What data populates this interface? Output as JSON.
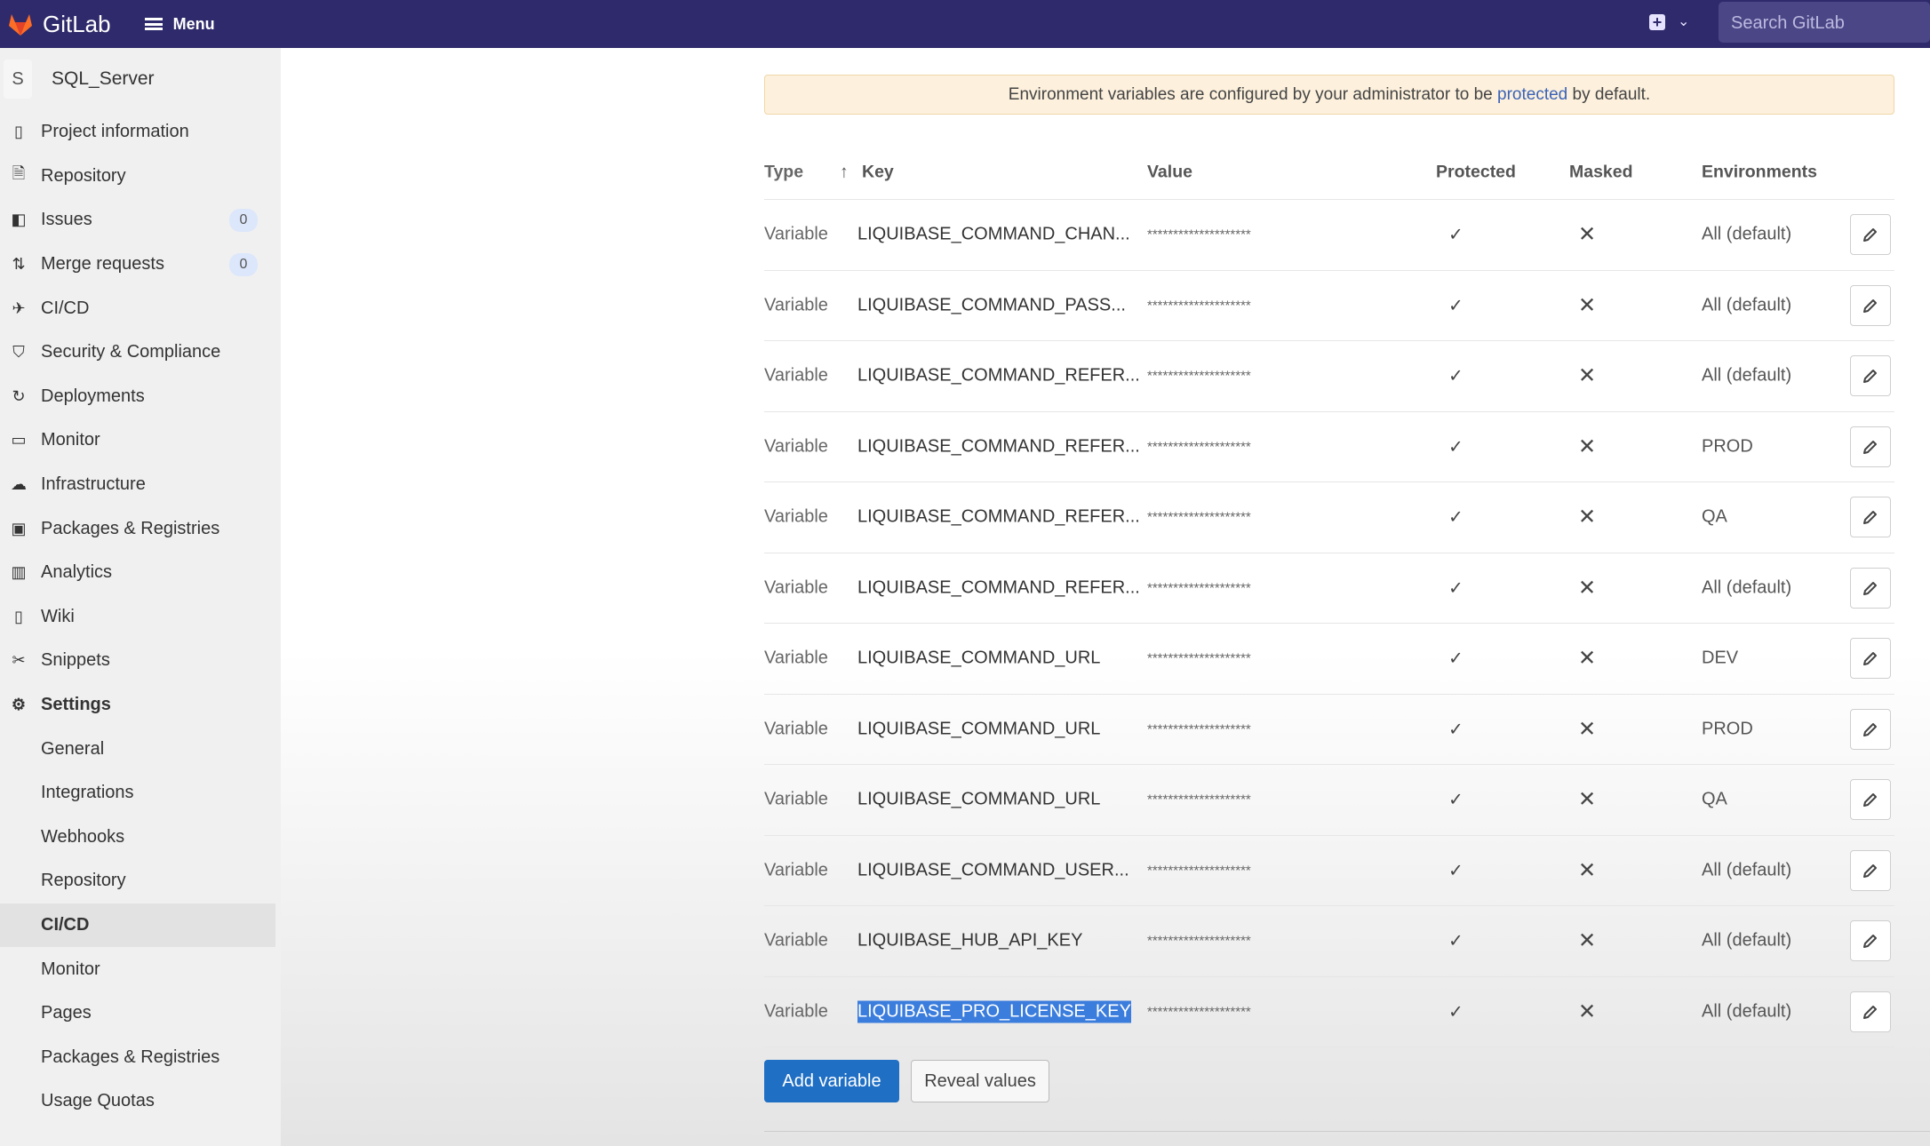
{
  "header": {
    "app_name": "GitLab",
    "menu_label": "Menu",
    "search_placeholder": "Search GitLab",
    "new_icon": "plus-square-icon",
    "brand_color": "#2f2a6b"
  },
  "sidebar": {
    "project_avatar": "S",
    "project_name": "SQL_Server",
    "items": [
      {
        "label": "Project information",
        "icon": "project-icon"
      },
      {
        "label": "Repository",
        "icon": "doc-icon"
      },
      {
        "label": "Issues",
        "icon": "issues-icon",
        "badge": "0"
      },
      {
        "label": "Merge requests",
        "icon": "merge-icon",
        "badge": "0"
      },
      {
        "label": "CI/CD",
        "icon": "rocket-icon"
      },
      {
        "label": "Security & Compliance",
        "icon": "shield-icon"
      },
      {
        "label": "Deployments",
        "icon": "deploy-icon"
      },
      {
        "label": "Monitor",
        "icon": "monitor-icon"
      },
      {
        "label": "Infrastructure",
        "icon": "cloud-icon"
      },
      {
        "label": "Packages & Registries",
        "icon": "package-icon"
      },
      {
        "label": "Analytics",
        "icon": "chart-icon"
      },
      {
        "label": "Wiki",
        "icon": "book-icon"
      },
      {
        "label": "Snippets",
        "icon": "scissors-icon"
      },
      {
        "label": "Settings",
        "icon": "gear-icon"
      }
    ],
    "settings_sub": [
      "General",
      "Integrations",
      "Webhooks",
      "Repository",
      "CI/CD",
      "Monitor",
      "Pages",
      "Packages & Registries",
      "Usage Quotas"
    ],
    "active_sub": "CI/CD"
  },
  "banner": {
    "before": "Environment variables are configured by your administrator to be ",
    "link": "protected",
    "after": " by default."
  },
  "table": {
    "headers": {
      "type": "Type",
      "key": "Key",
      "value": "Value",
      "protected": "Protected",
      "masked": "Masked",
      "environments": "Environments"
    },
    "sort_icon": "arrow-up-icon",
    "rows": [
      {
        "type": "Variable",
        "key": "LIQUIBASE_COMMAND_CHAN...",
        "value": "********************",
        "protected": "✓",
        "masked": "✕",
        "env": "All (default)"
      },
      {
        "type": "Variable",
        "key": "LIQUIBASE_COMMAND_PASS...",
        "value": "********************",
        "protected": "✓",
        "masked": "✕",
        "env": "All (default)"
      },
      {
        "type": "Variable",
        "key": "LIQUIBASE_COMMAND_REFER...",
        "value": "********************",
        "protected": "✓",
        "masked": "✕",
        "env": "All (default)"
      },
      {
        "type": "Variable",
        "key": "LIQUIBASE_COMMAND_REFER...",
        "value": "********************",
        "protected": "✓",
        "masked": "✕",
        "env": "PROD"
      },
      {
        "type": "Variable",
        "key": "LIQUIBASE_COMMAND_REFER...",
        "value": "********************",
        "protected": "✓",
        "masked": "✕",
        "env": "QA"
      },
      {
        "type": "Variable",
        "key": "LIQUIBASE_COMMAND_REFER...",
        "value": "********************",
        "protected": "✓",
        "masked": "✕",
        "env": "All (default)"
      },
      {
        "type": "Variable",
        "key": "LIQUIBASE_COMMAND_URL",
        "value": "********************",
        "protected": "✓",
        "masked": "✕",
        "env": "DEV"
      },
      {
        "type": "Variable",
        "key": "LIQUIBASE_COMMAND_URL",
        "value": "********************",
        "protected": "✓",
        "masked": "✕",
        "env": "PROD"
      },
      {
        "type": "Variable",
        "key": "LIQUIBASE_COMMAND_URL",
        "value": "********************",
        "protected": "✓",
        "masked": "✕",
        "env": "QA"
      },
      {
        "type": "Variable",
        "key": "LIQUIBASE_COMMAND_USER...",
        "value": "********************",
        "protected": "✓",
        "masked": "✕",
        "env": "All (default)"
      },
      {
        "type": "Variable",
        "key": "LIQUIBASE_HUB_API_KEY",
        "value": "********************",
        "protected": "✓",
        "masked": "✕",
        "env": "All (default)"
      },
      {
        "type": "Variable",
        "key": "LIQUIBASE_PRO_LICENSE_KEY",
        "value": "********************",
        "protected": "✓",
        "masked": "✕",
        "env": "All (default)",
        "selected": true
      }
    ]
  },
  "actions": {
    "add_label": "Add variable",
    "reveal_label": "Reveal values",
    "primary_color": "#1f6fc5"
  }
}
